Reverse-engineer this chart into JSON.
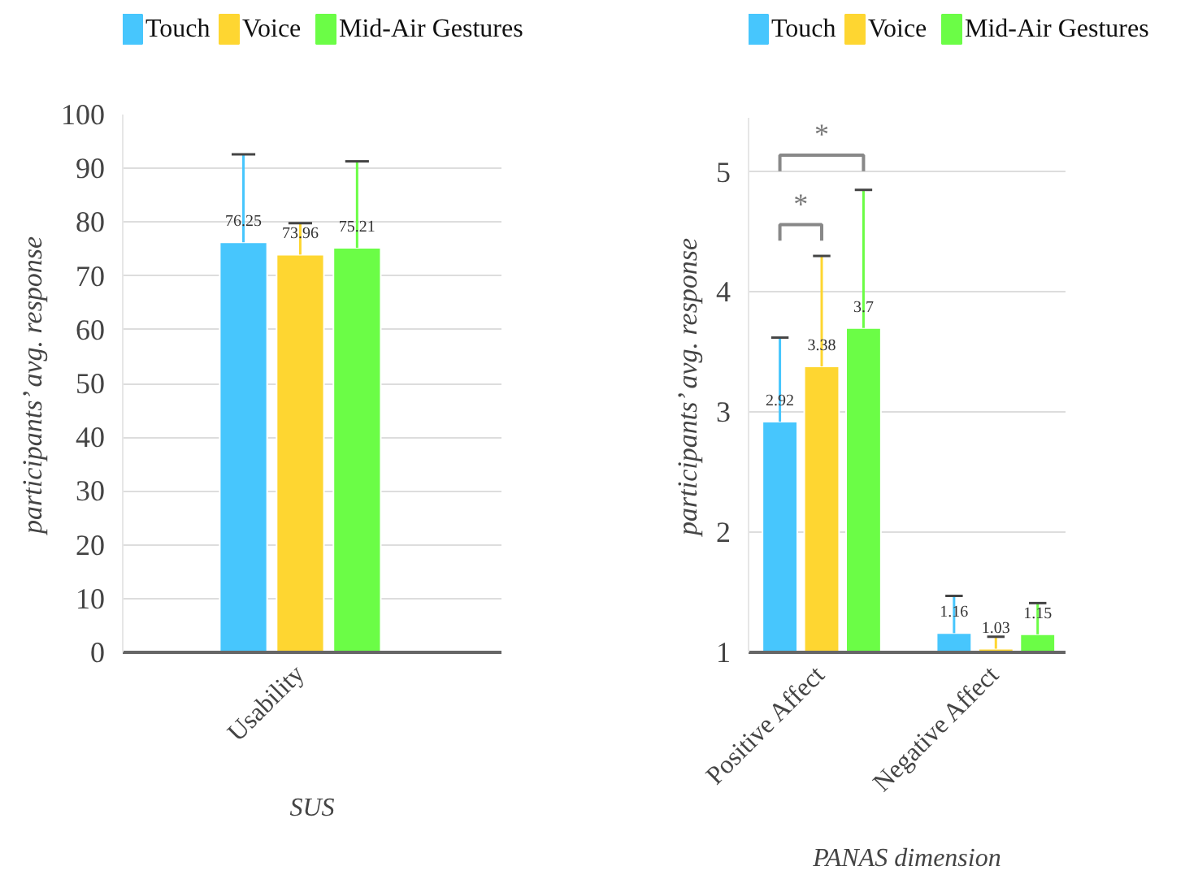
{
  "chart_data": [
    {
      "type": "bar",
      "categories": [
        "Usability"
      ],
      "xlabel": "SUS",
      "ylabel": "participants’ avg. response",
      "ylim": [
        0,
        100
      ],
      "yticks": [
        0,
        10,
        20,
        30,
        40,
        50,
        60,
        70,
        80,
        90,
        100
      ],
      "grid": "y",
      "legend": "top",
      "data_labels": true,
      "series": [
        {
          "name": "Touch",
          "color": "#47c6fd",
          "values": [
            76.25
          ],
          "errors": [
            [
              76.25,
              92.6
            ]
          ]
        },
        {
          "name": "Voice",
          "color": "#fed631",
          "values": [
            73.96
          ],
          "errors": [
            [
              73.96,
              79.8
            ]
          ]
        },
        {
          "name": "Mid-Air Gestures",
          "color": "#6bfd46",
          "values": [
            75.21
          ],
          "errors": [
            [
              75.21,
              91.3
            ]
          ]
        }
      ]
    },
    {
      "type": "bar",
      "categories": [
        "Positive Affect",
        "Negative Affect"
      ],
      "xlabel": "PANAS dimension",
      "ylabel": "participants’ avg. response",
      "ylim": [
        1,
        5.45
      ],
      "yticks": [
        1,
        2,
        3,
        4,
        5
      ],
      "grid": "y",
      "legend": "top",
      "data_labels": true,
      "annotations": [
        "*",
        "*"
      ],
      "series": [
        {
          "name": "Touch",
          "color": "#47c6fd",
          "values": [
            2.92,
            1.16
          ],
          "errors": [
            [
              2.92,
              3.62
            ],
            [
              1.16,
              1.47
            ]
          ]
        },
        {
          "name": "Voice",
          "color": "#fed631",
          "values": [
            3.38,
            1.03
          ],
          "errors": [
            [
              3.38,
              4.3
            ],
            [
              1.03,
              1.13
            ]
          ]
        },
        {
          "name": "Mid-Air Gestures",
          "color": "#6bfd46",
          "values": [
            3.7,
            1.15
          ],
          "errors": [
            [
              3.7,
              4.85
            ],
            [
              1.15,
              1.41
            ]
          ]
        }
      ]
    }
  ]
}
